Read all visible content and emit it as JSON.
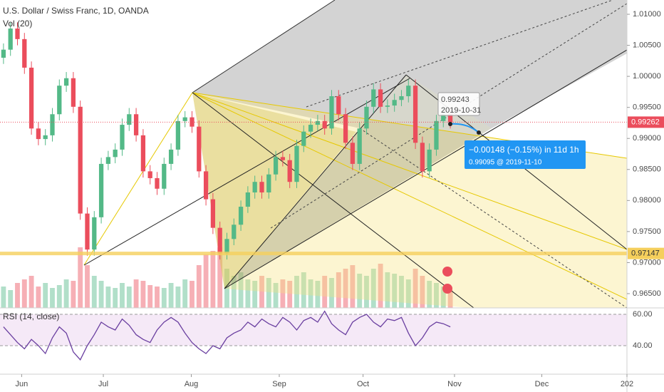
{
  "chart_data": [
    {
      "type": "candlestick",
      "title": "U.S. Dollar / Swiss Franc, 1D, OANDA",
      "subtitle": "Vol (20)",
      "x": [
        0,
        1,
        2,
        3,
        4,
        5,
        6,
        7,
        8,
        9,
        10,
        11,
        12,
        13,
        14,
        15,
        16,
        17,
        18,
        19,
        20,
        21,
        22,
        23,
        24,
        25,
        26,
        27,
        28,
        29,
        30,
        31,
        32,
        33,
        34,
        35,
        36,
        37,
        38,
        39,
        40,
        41,
        42,
        43,
        44,
        45,
        46,
        47,
        48,
        49,
        50,
        51,
        52,
        53,
        54,
        55,
        56,
        57,
        58,
        59,
        60,
        61,
        62,
        63,
        64
      ],
      "open": [
        1.003,
        1.0043,
        1.0077,
        1.006,
        1.0014,
        0.9916,
        0.9899,
        0.9905,
        0.9939,
        0.9985,
        0.9997,
        0.9951,
        0.9779,
        0.9721,
        0.9773,
        0.9859,
        0.987,
        0.9882,
        0.9922,
        0.9939,
        0.9905,
        0.9847,
        0.9836,
        0.9819,
        0.9859,
        0.9882,
        0.9928,
        0.9934,
        0.9919,
        0.9847,
        0.9802,
        0.9756,
        0.9715,
        0.9738,
        0.9761,
        0.979,
        0.9813,
        0.983,
        0.9813,
        0.9842,
        0.987,
        0.9865,
        0.983,
        0.9888,
        0.9911,
        0.9922,
        0.9928,
        0.9916,
        0.9968,
        0.9939,
        0.9893,
        0.9859,
        0.9916,
        0.9951,
        0.9979,
        0.9951,
        0.9953,
        0.9962,
        0.9968,
        0.9985,
        0.9893,
        0.9847,
        0.9882,
        0.9928,
        0.9939
      ],
      "high": [
        1.0053,
        1.0087,
        1.0087,
        1.007,
        1.0024,
        0.9926,
        0.9915,
        0.9949,
        0.9995,
        1.0007,
        1.0007,
        0.9961,
        0.9789,
        0.9783,
        0.9869,
        0.988,
        0.9892,
        0.9932,
        0.9949,
        0.9949,
        0.9915,
        0.9857,
        0.9846,
        0.9869,
        0.9892,
        0.9938,
        0.9944,
        0.9944,
        0.9929,
        0.9857,
        0.9812,
        0.9766,
        0.9748,
        0.9771,
        0.98,
        0.9823,
        0.984,
        0.984,
        0.9852,
        0.988,
        0.988,
        0.9875,
        0.9898,
        0.9921,
        0.9932,
        0.9938,
        0.9938,
        0.9978,
        0.9978,
        0.9949,
        0.9903,
        0.9926,
        0.9961,
        0.9989,
        0.9989,
        0.9963,
        0.9972,
        0.9978,
        0.9995,
        0.9995,
        0.9903,
        0.9892,
        0.9938,
        0.9949,
        0.9949
      ],
      "low": [
        1.002,
        1.0033,
        1.005,
        1.0004,
        0.9906,
        0.9889,
        0.9889,
        0.9895,
        0.9929,
        0.9975,
        0.9941,
        0.9769,
        0.9711,
        0.9711,
        0.9763,
        0.9849,
        0.986,
        0.9872,
        0.9912,
        0.9895,
        0.9837,
        0.9826,
        0.9809,
        0.9809,
        0.9849,
        0.9872,
        0.9918,
        0.9909,
        0.9837,
        0.9792,
        0.9746,
        0.9705,
        0.9705,
        0.9728,
        0.9751,
        0.978,
        0.9803,
        0.9803,
        0.9803,
        0.9832,
        0.9855,
        0.982,
        0.982,
        0.9878,
        0.9901,
        0.9912,
        0.9906,
        0.9906,
        0.9929,
        0.9883,
        0.9849,
        0.9849,
        0.9906,
        0.9941,
        0.9941,
        0.9941,
        0.9943,
        0.9952,
        0.9958,
        0.9883,
        0.9837,
        0.9837,
        0.9872,
        0.9918,
        0.9916
      ],
      "close": [
        1.0043,
        1.0077,
        1.006,
        1.0014,
        0.9916,
        0.9899,
        0.9905,
        0.9939,
        0.9985,
        0.9997,
        0.9951,
        0.9779,
        0.9721,
        0.9773,
        0.9859,
        0.987,
        0.9882,
        0.9922,
        0.9939,
        0.9905,
        0.9847,
        0.9836,
        0.9819,
        0.9859,
        0.9882,
        0.9928,
        0.9934,
        0.9919,
        0.9847,
        0.9802,
        0.9756,
        0.9715,
        0.9738,
        0.9761,
        0.979,
        0.9813,
        0.983,
        0.9813,
        0.9842,
        0.987,
        0.9865,
        0.983,
        0.9888,
        0.9911,
        0.9922,
        0.9928,
        0.9916,
        0.9968,
        0.9939,
        0.9893,
        0.9859,
        0.9916,
        0.9951,
        0.9979,
        0.9951,
        0.9953,
        0.9962,
        0.9968,
        0.9985,
        0.9893,
        0.9847,
        0.9882,
        0.9928,
        0.9939,
        0.9926
      ],
      "volume": [
        30,
        25,
        35,
        40,
        45,
        30,
        35,
        28,
        32,
        40,
        38,
        85,
        60,
        45,
        38,
        30,
        28,
        35,
        30,
        40,
        38,
        32,
        30,
        28,
        35,
        30,
        40,
        38,
        60,
        75,
        80,
        85,
        55,
        45,
        50,
        40,
        38,
        45,
        42,
        35,
        40,
        38,
        45,
        50,
        40,
        38,
        45,
        42,
        50,
        55,
        60,
        48,
        45,
        55,
        62,
        50,
        48,
        45,
        40,
        55,
        45,
        38,
        35,
        30,
        25
      ],
      "up_color": "#53b987",
      "down_color": "#eb4d5c",
      "xlim": [
        -0.5,
        89.3
      ],
      "xticks": [
        {
          "value": 2.6,
          "label": "Jun"
        },
        {
          "value": 14.3,
          "label": "Jul"
        },
        {
          "value": 26.9,
          "label": "Aug"
        },
        {
          "value": 39.5,
          "label": "Sep"
        },
        {
          "value": 51.5,
          "label": "Oct"
        },
        {
          "value": 64.6,
          "label": "Nov"
        },
        {
          "value": 77.1,
          "label": "Dec"
        },
        {
          "value": 89.3,
          "label": "202"
        }
      ],
      "ylim": [
        0.9627,
        1.0123
      ],
      "yticks": [
        {
          "value": 1.01,
          "label": "1.01000"
        },
        {
          "value": 1.005,
          "label": "1.00500"
        },
        {
          "value": 1.0,
          "label": "1.00000"
        },
        {
          "value": 0.995,
          "label": "0.99500"
        },
        {
          "value": 0.99,
          "label": "0.99000"
        },
        {
          "value": 0.985,
          "label": "0.98500"
        },
        {
          "value": 0.98,
          "label": "0.98000"
        },
        {
          "value": 0.975,
          "label": "0.97500"
        },
        {
          "value": 0.97,
          "label": "0.97000"
        },
        {
          "value": 0.965,
          "label": "0.96500"
        }
      ],
      "vlim": [
        0,
        100
      ],
      "last_price": 0.99262,
      "level": 0.97147,
      "callout_price": "0.99243",
      "callout_date": "2019-10-31",
      "projection": "−0.00148 (−0.15%) in 11d 1h",
      "projection_target": "0.99095 @ 2019-11-10"
    },
    {
      "type": "line",
      "title": "RSI (14, close)",
      "color": "#6a3fa0",
      "values": [
        52,
        47,
        42,
        38,
        44,
        40,
        35,
        45,
        52,
        48,
        36,
        31,
        40,
        47,
        55,
        52,
        50,
        57,
        53,
        47,
        44,
        42,
        50,
        55,
        58,
        55,
        48,
        42,
        38,
        35,
        40,
        38,
        45,
        48,
        50,
        55,
        52,
        57,
        54,
        52,
        58,
        55,
        50,
        56,
        58,
        55,
        62,
        54,
        50,
        47,
        55,
        58,
        60,
        55,
        52,
        57,
        56,
        58,
        48,
        40,
        45,
        52,
        55,
        54,
        52
      ],
      "ylim": [
        21.8,
        64.1
      ],
      "yticks": [
        {
          "value": 60,
          "label": "60.00"
        },
        {
          "value": 40,
          "label": "40.00"
        }
      ]
    }
  ]
}
